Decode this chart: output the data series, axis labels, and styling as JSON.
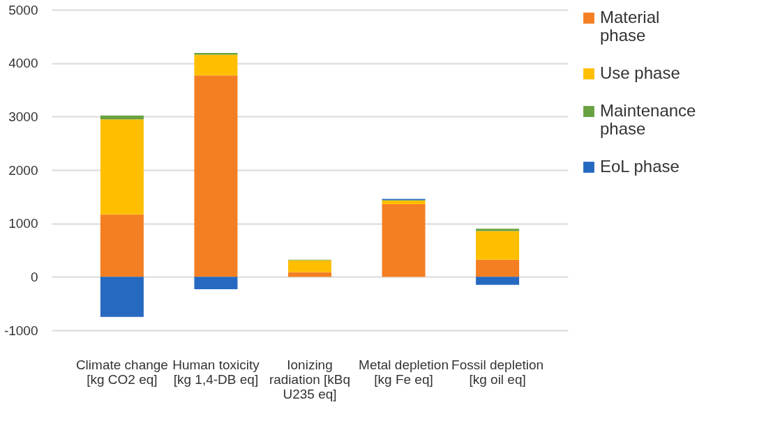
{
  "chart_data": {
    "type": "bar",
    "stacked": true,
    "categories": [
      "Climate change [kg CO2 eq]",
      "Human toxicity [kg 1,4-DB eq]",
      "Ionizing radiation [kBq U235 eq]",
      "Metal depletion [kg Fe eq]",
      "Fossil depletion [kg oil eq]"
    ],
    "series": [
      {
        "name": "Material phase",
        "color": "#f47f22",
        "values": [
          1170,
          3770,
          90,
          1360,
          320
        ]
      },
      {
        "name": "Use phase",
        "color": "#ffbf00",
        "values": [
          1780,
          390,
          220,
          70,
          540
        ]
      },
      {
        "name": "Maintenance phase",
        "color": "#68a142",
        "values": [
          70,
          30,
          10,
          10,
          40
        ]
      },
      {
        "name": "EoL phase",
        "color": "#2669c0",
        "values": [
          -750,
          -230,
          0,
          20,
          -150
        ]
      }
    ],
    "ylim": [
      -1000,
      5000
    ],
    "yticks": [
      -1000,
      0,
      1000,
      2000,
      3000,
      4000,
      5000
    ],
    "grid": "y",
    "legend": "right"
  }
}
